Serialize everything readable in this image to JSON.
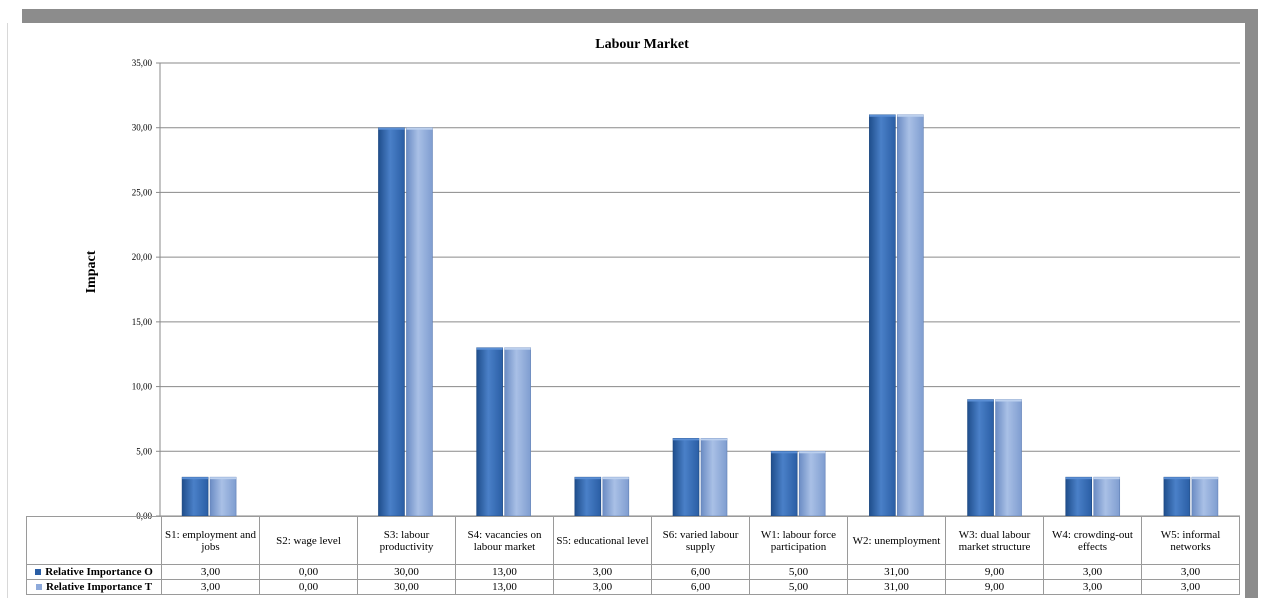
{
  "chart_data": {
    "type": "bar",
    "title": "Labour Market",
    "xlabel": "",
    "ylabel": "Impact",
    "ylim": [
      0,
      35
    ],
    "yticks": [
      "0,00",
      "5,00",
      "10,00",
      "15,00",
      "20,00",
      "25,00",
      "30,00",
      "35,00"
    ],
    "grid": true,
    "legend": "table",
    "categories": [
      "S1: employment and jobs",
      "S2: wage level",
      "S3: labour productivity",
      "S4: vacancies on labour market",
      "S5: educational level",
      "S6: varied labour supply",
      "W1: labour force participation",
      "W2: unemployment",
      "W3: dual labour market structure",
      "W4: crowding-out effects",
      "W5: informal networks"
    ],
    "series": [
      {
        "name": "Relative Importance O",
        "color": "#3a6fb5",
        "values": [
          3,
          0,
          30,
          13,
          3,
          6,
          5,
          31,
          9,
          3,
          3
        ],
        "labels": [
          "3,00",
          "0,00",
          "30,00",
          "13,00",
          "3,00",
          "6,00",
          "5,00",
          "31,00",
          "9,00",
          "3,00",
          "3,00"
        ]
      },
      {
        "name": "Relative Importance T",
        "color": "#8eaadb",
        "values": [
          3,
          0,
          30,
          13,
          3,
          6,
          5,
          31,
          9,
          3,
          3
        ],
        "labels": [
          "3,00",
          "0,00",
          "30,00",
          "13,00",
          "3,00",
          "6,00",
          "5,00",
          "31,00",
          "9,00",
          "3,00",
          "3,00"
        ]
      }
    ]
  }
}
